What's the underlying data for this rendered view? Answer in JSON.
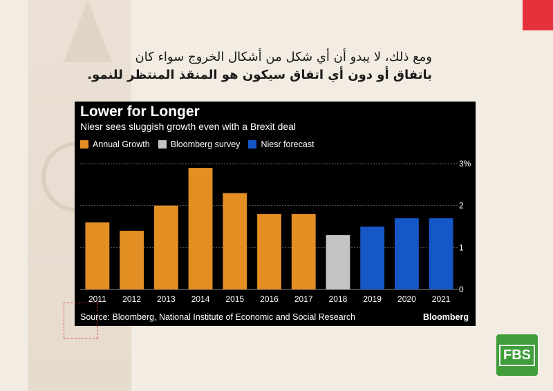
{
  "headline": {
    "line1": "ومع ذلك، لا يبدو أن أي شكل من أشكال الخروج سواء كان",
    "line2": "باتفاق أو دون أي اتفاق سيكون هو المنقذ المنتظر للنمو."
  },
  "chart_data": {
    "type": "bar",
    "title": "Lower for Longer",
    "subtitle": "Niesr sees sluggish growth even with a Brexit deal",
    "categories": [
      "2011",
      "2012",
      "2013",
      "2014",
      "2015",
      "2016",
      "2017",
      "2018",
      "2019",
      "2020",
      "2021"
    ],
    "values": [
      1.6,
      1.4,
      2.0,
      2.9,
      2.3,
      1.8,
      1.8,
      1.3,
      1.5,
      1.7,
      1.7
    ],
    "series_of_bar": [
      "Annual Growth",
      "Annual Growth",
      "Annual Growth",
      "Annual Growth",
      "Annual Growth",
      "Annual Growth",
      "Annual Growth",
      "Bloomberg survey",
      "Niesr forecast",
      "Niesr forecast",
      "Niesr forecast"
    ],
    "legend": [
      {
        "name": "Annual Growth",
        "color": "#e38f24"
      },
      {
        "name": "Bloomberg survey",
        "color": "#c4c4c4"
      },
      {
        "name": "Niesr forecast",
        "color": "#1657c8"
      }
    ],
    "ylim": [
      0,
      3
    ],
    "y_ticks": [
      "0",
      "1",
      "2",
      "3%"
    ],
    "y_tick_values": [
      0,
      1,
      2,
      3
    ],
    "grid": true,
    "legend_position": "top-left",
    "source": "Source: Bloomberg, National Institute of Economic and Social Research",
    "brand": "Bloomberg"
  },
  "logo": {
    "text": "FBS",
    "color": "#3f9d3a"
  },
  "accent_color": "#e6303b"
}
